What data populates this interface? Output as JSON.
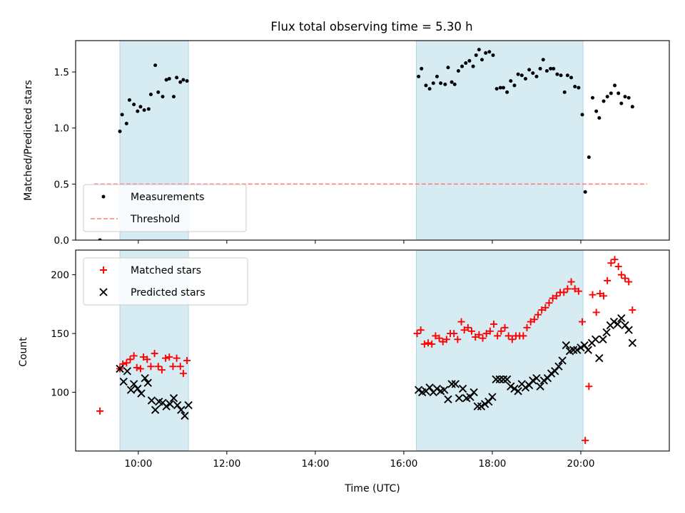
{
  "chart_data": [
    {
      "type": "scatter",
      "title": "Flux total observing time = 5.30 h",
      "xlabel": "",
      "ylabel": "Matched/Predicted stars",
      "xlim": [
        "08:35",
        "22:00"
      ],
      "ylim": [
        0,
        1.78
      ],
      "yticks": [
        "0.0",
        "0.5",
        "1.0",
        "1.5"
      ],
      "legend_position": "lower-left",
      "shaded_intervals": [
        [
          "09:35",
          "11:08"
        ],
        [
          "16:17",
          "20:03"
        ]
      ],
      "colors": {
        "measurements": "#000000",
        "threshold": "#ff7f7f",
        "shade": "#add8e6"
      },
      "series": [
        {
          "name": "Measurements",
          "marker": "dot",
          "points": [
            [
              "09:08",
              0.0
            ],
            [
              "09:35",
              0.97
            ],
            [
              "09:38",
              1.12
            ],
            [
              "09:44",
              1.04
            ],
            [
              "09:48",
              1.25
            ],
            [
              "09:54",
              1.21
            ],
            [
              "09:59",
              1.15
            ],
            [
              "10:03",
              1.19
            ],
            [
              "10:08",
              1.16
            ],
            [
              "10:14",
              1.17
            ],
            [
              "10:17",
              1.3
            ],
            [
              "10:23",
              1.56
            ],
            [
              "10:27",
              1.32
            ],
            [
              "10:33",
              1.28
            ],
            [
              "10:38",
              1.43
            ],
            [
              "10:42",
              1.44
            ],
            [
              "10:48",
              1.28
            ],
            [
              "10:52",
              1.45
            ],
            [
              "10:57",
              1.41
            ],
            [
              "11:01",
              1.43
            ],
            [
              "11:06",
              1.42
            ],
            [
              "16:20",
              1.46
            ],
            [
              "16:24",
              1.53
            ],
            [
              "16:30",
              1.38
            ],
            [
              "16:35",
              1.35
            ],
            [
              "16:40",
              1.4
            ],
            [
              "16:45",
              1.46
            ],
            [
              "16:50",
              1.4
            ],
            [
              "16:56",
              1.39
            ],
            [
              "17:00",
              1.54
            ],
            [
              "17:05",
              1.41
            ],
            [
              "17:09",
              1.39
            ],
            [
              "17:14",
              1.51
            ],
            [
              "17:19",
              1.55
            ],
            [
              "17:24",
              1.58
            ],
            [
              "17:29",
              1.6
            ],
            [
              "17:34",
              1.55
            ],
            [
              "17:38",
              1.65
            ],
            [
              "17:42",
              1.7
            ],
            [
              "17:46",
              1.61
            ],
            [
              "17:51",
              1.67
            ],
            [
              "17:56",
              1.68
            ],
            [
              "18:01",
              1.65
            ],
            [
              "18:06",
              1.35
            ],
            [
              "18:11",
              1.36
            ],
            [
              "18:15",
              1.36
            ],
            [
              "18:20",
              1.32
            ],
            [
              "18:25",
              1.42
            ],
            [
              "18:30",
              1.38
            ],
            [
              "18:35",
              1.48
            ],
            [
              "18:40",
              1.47
            ],
            [
              "18:45",
              1.44
            ],
            [
              "18:50",
              1.52
            ],
            [
              "18:55",
              1.49
            ],
            [
              "19:00",
              1.46
            ],
            [
              "19:05",
              1.53
            ],
            [
              "19:09",
              1.61
            ],
            [
              "19:14",
              1.51
            ],
            [
              "19:19",
              1.53
            ],
            [
              "19:23",
              1.53
            ],
            [
              "19:28",
              1.48
            ],
            [
              "19:33",
              1.47
            ],
            [
              "19:38",
              1.32
            ],
            [
              "19:42",
              1.47
            ],
            [
              "19:47",
              1.45
            ],
            [
              "19:52",
              1.37
            ],
            [
              "19:57",
              1.36
            ],
            [
              "20:02",
              1.12
            ],
            [
              "20:06",
              0.43
            ],
            [
              "20:11",
              0.74
            ],
            [
              "20:16",
              1.27
            ],
            [
              "20:21",
              1.15
            ],
            [
              "20:25",
              1.09
            ],
            [
              "20:31",
              1.24
            ],
            [
              "20:36",
              1.28
            ],
            [
              "20:41",
              1.31
            ],
            [
              "20:46",
              1.38
            ],
            [
              "20:51",
              1.31
            ],
            [
              "20:55",
              1.22
            ],
            [
              "21:00",
              1.28
            ],
            [
              "21:05",
              1.27
            ],
            [
              "21:10",
              1.19
            ]
          ]
        },
        {
          "name": "Threshold",
          "marker": "dashed-line",
          "points": [
            [
              "09:00",
              0.5
            ],
            [
              "21:30",
              0.5
            ]
          ]
        }
      ]
    },
    {
      "type": "scatter",
      "title": "",
      "xlabel": "Time (UTC)",
      "ylabel": "Count",
      "xlim": [
        "08:35",
        "22:00"
      ],
      "ylim": [
        50,
        221
      ],
      "xticks": [
        "10:00",
        "12:00",
        "14:00",
        "16:00",
        "18:00",
        "20:00"
      ],
      "yticks": [
        "100",
        "150",
        "200"
      ],
      "legend_position": "upper-left",
      "shaded_intervals": [
        [
          "09:35",
          "11:08"
        ],
        [
          "16:17",
          "20:03"
        ]
      ],
      "colors": {
        "matched": "#ff0000",
        "predicted": "#000000",
        "shade": "#add8e6"
      },
      "series": [
        {
          "name": "Matched stars",
          "marker": "plus",
          "points": [
            [
              "09:08",
              84
            ],
            [
              "09:35",
              120
            ],
            [
              "09:39",
              124
            ],
            [
              "09:44",
              125
            ],
            [
              "09:49",
              128
            ],
            [
              "09:54",
              131
            ],
            [
              "09:58",
              121
            ],
            [
              "10:03",
              120
            ],
            [
              "10:07",
              130
            ],
            [
              "10:12",
              128
            ],
            [
              "10:17",
              122
            ],
            [
              "10:22",
              133
            ],
            [
              "10:27",
              122
            ],
            [
              "10:32",
              119
            ],
            [
              "10:37",
              129
            ],
            [
              "10:42",
              130
            ],
            [
              "10:47",
              122
            ],
            [
              "10:52",
              129
            ],
            [
              "10:57",
              122
            ],
            [
              "11:01",
              116
            ],
            [
              "11:06",
              127
            ],
            [
              "16:18",
              150
            ],
            [
              "16:23",
              153
            ],
            [
              "16:28",
              141
            ],
            [
              "16:33",
              142
            ],
            [
              "16:38",
              141
            ],
            [
              "16:43",
              148
            ],
            [
              "16:48",
              146
            ],
            [
              "16:53",
              143
            ],
            [
              "16:58",
              145
            ],
            [
              "17:03",
              150
            ],
            [
              "17:08",
              150
            ],
            [
              "17:13",
              145
            ],
            [
              "17:18",
              160
            ],
            [
              "17:22",
              153
            ],
            [
              "17:27",
              155
            ],
            [
              "17:32",
              152
            ],
            [
              "17:37",
              147
            ],
            [
              "17:42",
              149
            ],
            [
              "17:47",
              146
            ],
            [
              "17:52",
              150
            ],
            [
              "17:57",
              152
            ],
            [
              "18:02",
              158
            ],
            [
              "18:07",
              148
            ],
            [
              "18:12",
              152
            ],
            [
              "18:17",
              155
            ],
            [
              "18:22",
              148
            ],
            [
              "18:27",
              145
            ],
            [
              "18:32",
              148
            ],
            [
              "18:37",
              148
            ],
            [
              "18:42",
              148
            ],
            [
              "18:47",
              155
            ],
            [
              "18:52",
              160
            ],
            [
              "18:57",
              162
            ],
            [
              "19:02",
              166
            ],
            [
              "19:07",
              170
            ],
            [
              "19:12",
              172
            ],
            [
              "19:17",
              176
            ],
            [
              "19:22",
              180
            ],
            [
              "19:27",
              182
            ],
            [
              "19:32",
              185
            ],
            [
              "19:37",
              185
            ],
            [
              "19:42",
              188
            ],
            [
              "19:47",
              194
            ],
            [
              "19:52",
              188
            ],
            [
              "19:57",
              186
            ],
            [
              "20:02",
              160
            ],
            [
              "20:06",
              59
            ],
            [
              "20:11",
              105
            ],
            [
              "20:16",
              183
            ],
            [
              "20:21",
              168
            ],
            [
              "20:26",
              184
            ],
            [
              "20:31",
              182
            ],
            [
              "20:36",
              195
            ],
            [
              "20:41",
              210
            ],
            [
              "20:46",
              213
            ],
            [
              "20:51",
              207
            ],
            [
              "20:55",
              200
            ],
            [
              "21:00",
              197
            ],
            [
              "21:05",
              194
            ],
            [
              "21:10",
              170
            ]
          ]
        },
        {
          "name": "Predicted stars",
          "marker": "x",
          "points": [
            [
              "09:35",
              120
            ],
            [
              "09:40",
              109
            ],
            [
              "09:45",
              118
            ],
            [
              "09:50",
              102
            ],
            [
              "09:54",
              107
            ],
            [
              "09:59",
              103
            ],
            [
              "10:04",
              99
            ],
            [
              "10:09",
              112
            ],
            [
              "10:13",
              108
            ],
            [
              "10:18",
              93
            ],
            [
              "10:23",
              85
            ],
            [
              "10:28",
              92
            ],
            [
              "10:33",
              91
            ],
            [
              "10:38",
              88
            ],
            [
              "10:43",
              90
            ],
            [
              "10:48",
              95
            ],
            [
              "10:53",
              89
            ],
            [
              "10:58",
              85
            ],
            [
              "11:03",
              80
            ],
            [
              "11:08",
              89
            ],
            [
              "16:20",
              102
            ],
            [
              "16:25",
              100
            ],
            [
              "16:30",
              101
            ],
            [
              "16:35",
              104
            ],
            [
              "16:40",
              100
            ],
            [
              "16:45",
              103
            ],
            [
              "16:50",
              101
            ],
            [
              "16:55",
              102
            ],
            [
              "17:00",
              94
            ],
            [
              "17:05",
              107
            ],
            [
              "17:10",
              107
            ],
            [
              "17:15",
              95
            ],
            [
              "17:20",
              103
            ],
            [
              "17:25",
              95
            ],
            [
              "17:30",
              96
            ],
            [
              "17:35",
              100
            ],
            [
              "17:40",
              88
            ],
            [
              "17:45",
              88
            ],
            [
              "17:50",
              90
            ],
            [
              "17:55",
              92
            ],
            [
              "18:00",
              96
            ],
            [
              "18:05",
              111
            ],
            [
              "18:10",
              111
            ],
            [
              "18:15",
              111
            ],
            [
              "18:20",
              111
            ],
            [
              "18:25",
              105
            ],
            [
              "18:30",
              103
            ],
            [
              "18:35",
              101
            ],
            [
              "18:40",
              107
            ],
            [
              "18:45",
              104
            ],
            [
              "18:50",
              106
            ],
            [
              "18:55",
              110
            ],
            [
              "19:00",
              112
            ],
            [
              "19:05",
              105
            ],
            [
              "19:10",
              110
            ],
            [
              "19:15",
              112
            ],
            [
              "19:20",
              116
            ],
            [
              "19:25",
              118
            ],
            [
              "19:30",
              122
            ],
            [
              "19:35",
              127
            ],
            [
              "19:40",
              140
            ],
            [
              "19:45",
              135
            ],
            [
              "19:50",
              136
            ],
            [
              "19:55",
              136
            ],
            [
              "20:00",
              138
            ],
            [
              "20:05",
              140
            ],
            [
              "20:10",
              136
            ],
            [
              "20:15",
              142
            ],
            [
              "20:20",
              145
            ],
            [
              "20:25",
              129
            ],
            [
              "20:30",
              145
            ],
            [
              "20:35",
              151
            ],
            [
              "20:40",
              157
            ],
            [
              "20:45",
              160
            ],
            [
              "20:50",
              158
            ],
            [
              "20:55",
              163
            ],
            [
              "21:00",
              157
            ],
            [
              "21:05",
              153
            ],
            [
              "21:10",
              142
            ]
          ]
        }
      ]
    }
  ]
}
